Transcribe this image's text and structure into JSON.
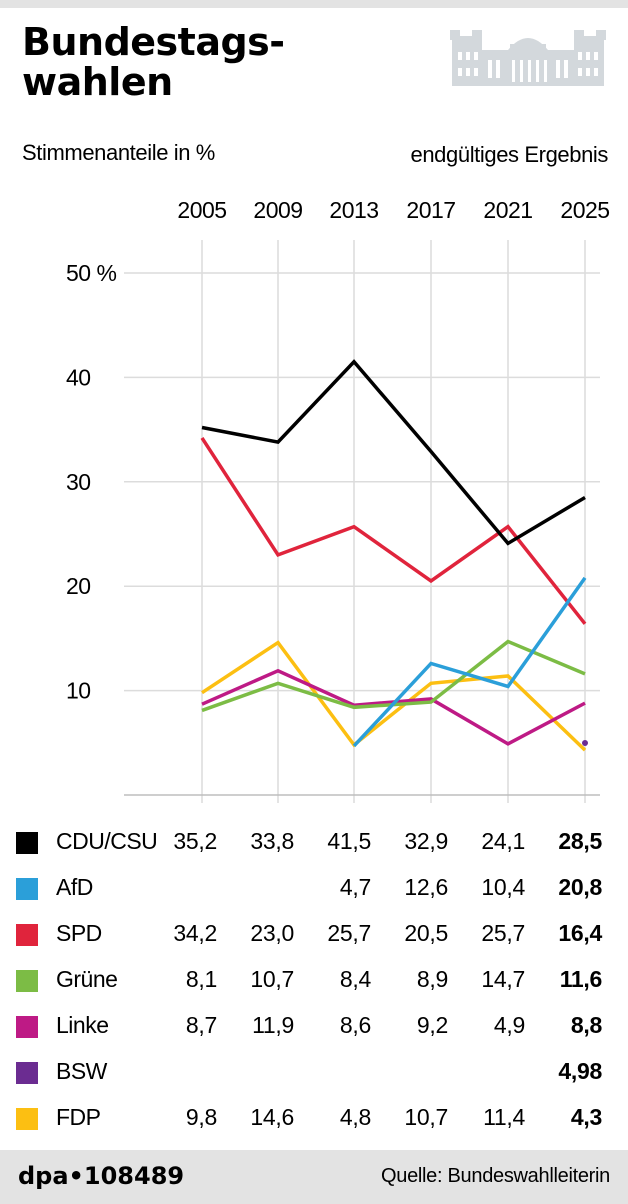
{
  "header": {
    "title_line1": "Bundestags-",
    "title_line2": "wahlen",
    "subtitle": "Stimmenanteile in %",
    "status": "endgültiges Ergebnis",
    "icon": "reichstag-building-icon"
  },
  "chart_data": {
    "type": "line",
    "x": [
      "2005",
      "2009",
      "2013",
      "2017",
      "2021",
      "2025"
    ],
    "ylim": [
      0,
      50
    ],
    "yticks": [
      10,
      20,
      30,
      40,
      50
    ],
    "ytick_labels": [
      "10",
      "20",
      "30",
      "40",
      "50 %"
    ],
    "grid": true,
    "legend": "bottom-table",
    "series": [
      {
        "name": "CDU/CSU",
        "color": "#000000",
        "values": [
          35.2,
          33.8,
          41.5,
          32.9,
          24.1,
          28.5
        ],
        "labels": [
          "35,2",
          "33,8",
          "41,5",
          "32,9",
          "24,1",
          "28,5"
        ]
      },
      {
        "name": "AfD",
        "color": "#2b9fd9",
        "values": [
          null,
          null,
          4.7,
          12.6,
          10.4,
          20.8
        ],
        "labels": [
          "",
          "",
          "4,7",
          "12,6",
          "10,4",
          "20,8"
        ]
      },
      {
        "name": "SPD",
        "color": "#e0243c",
        "values": [
          34.2,
          23.0,
          25.7,
          20.5,
          25.7,
          16.4
        ],
        "labels": [
          "34,2",
          "23,0",
          "25,7",
          "20,5",
          "25,7",
          "16,4"
        ]
      },
      {
        "name": "Grüne",
        "color": "#7cbc45",
        "values": [
          8.1,
          10.7,
          8.4,
          8.9,
          14.7,
          11.6
        ],
        "labels": [
          "8,1",
          "10,7",
          "8,4",
          "8,9",
          "14,7",
          "11,6"
        ]
      },
      {
        "name": "Linke",
        "color": "#be1a85",
        "values": [
          8.7,
          11.9,
          8.6,
          9.2,
          4.9,
          8.8
        ],
        "labels": [
          "8,7",
          "11,9",
          "8,6",
          "9,2",
          "4,9",
          "8,8"
        ]
      },
      {
        "name": "BSW",
        "color": "#6b2c91",
        "values": [
          null,
          null,
          null,
          null,
          null,
          4.98
        ],
        "labels": [
          "",
          "",
          "",
          "",
          "",
          "4,98"
        ]
      },
      {
        "name": "FDP",
        "color": "#fcbf12",
        "values": [
          9.8,
          14.6,
          4.8,
          10.7,
          11.4,
          4.3
        ],
        "labels": [
          "9,8",
          "14,6",
          "4,8",
          "10,7",
          "11,4",
          "4,3"
        ]
      }
    ]
  },
  "footer": {
    "brand": "dpa•108489",
    "source": "Quelle: Bundeswahlleiterin"
  }
}
